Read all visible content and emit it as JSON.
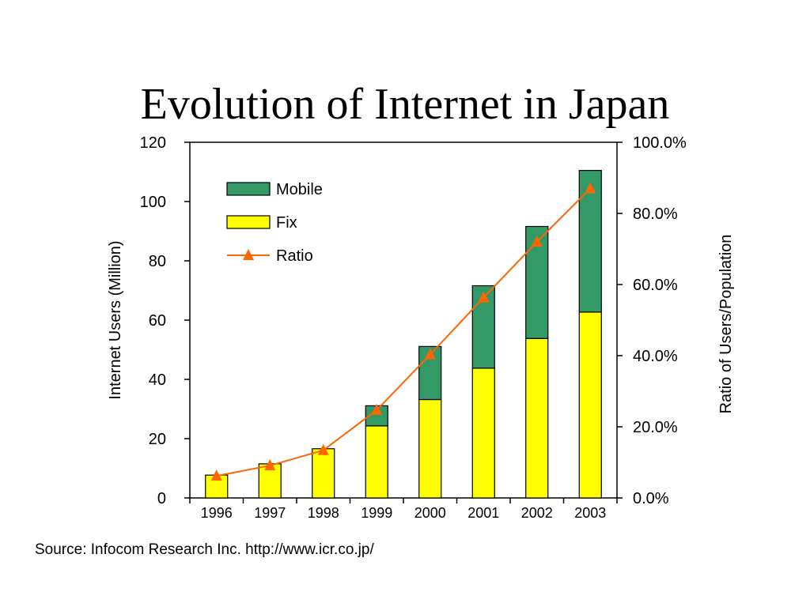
{
  "slide": {
    "title": "Evolution of Internet in Japan",
    "source": "Source: Infocom Research Inc. http://www.icr.co.jp/"
  },
  "chart_data": {
    "type": "bar",
    "stacked": true,
    "categories": [
      "1996",
      "1997",
      "1998",
      "1999",
      "2000",
      "2001",
      "2002",
      "2003"
    ],
    "series": [
      {
        "name": "Fix",
        "type": "bar",
        "axis": "left",
        "color": "#ffff00",
        "values": [
          7.7,
          11.5,
          16.6,
          24.3,
          33.2,
          43.8,
          53.8,
          62.7
        ]
      },
      {
        "name": "Mobile",
        "type": "bar",
        "axis": "left",
        "color": "#339966",
        "values": [
          0,
          0,
          0,
          6.8,
          17.9,
          27.8,
          37.8,
          47.8
        ]
      },
      {
        "name": "Ratio",
        "type": "line",
        "axis": "right",
        "color": "#ff6600",
        "marker": "triangle",
        "values": [
          6.2,
          9.1,
          13.4,
          24.7,
          40.3,
          56.3,
          72.0,
          87.0
        ]
      }
    ],
    "ylabel": "Internet Users (Million)",
    "y2label": "Ratio of Users/Population",
    "ylim": [
      0,
      120
    ],
    "y2lim": [
      0,
      100
    ],
    "yticks": [
      "0",
      "20",
      "40",
      "60",
      "80",
      "100",
      "120"
    ],
    "y2ticks": [
      "0.0%",
      "20.0%",
      "40.0%",
      "60.0%",
      "80.0%",
      "100.0%"
    ],
    "grid": false,
    "legend": "top-left"
  }
}
